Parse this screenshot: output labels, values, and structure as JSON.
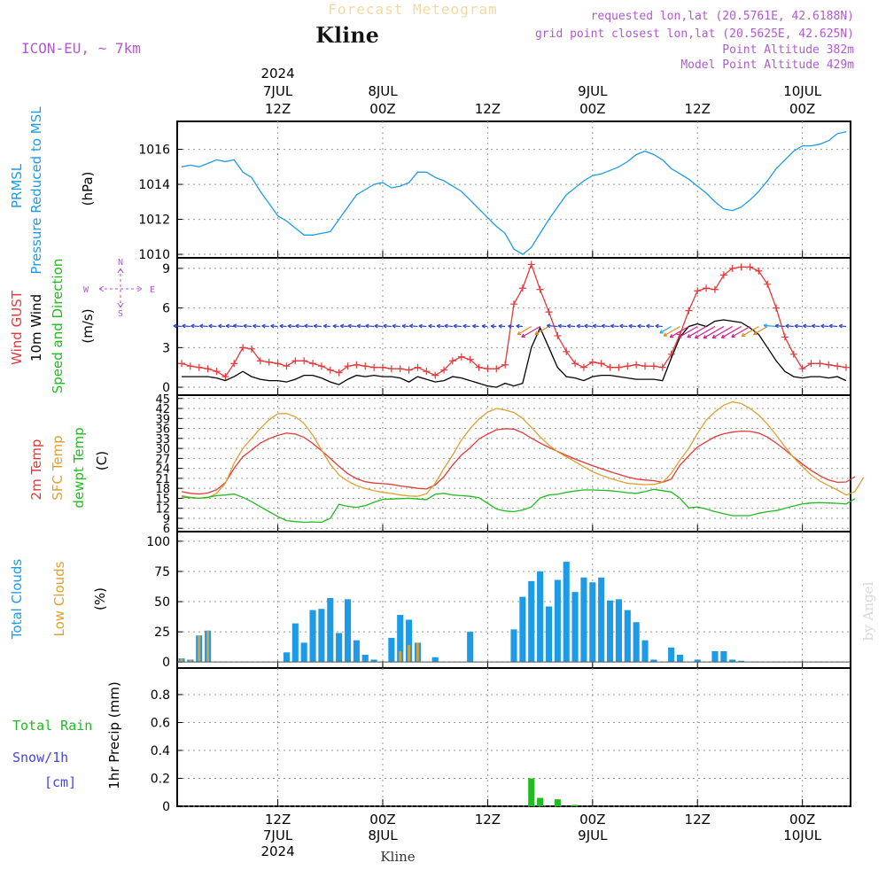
{
  "header": {
    "title_top": "Forecast Meteogram",
    "location": "Kline",
    "model": "ICON-EU, ~ 7km",
    "requested": "requested lon,lat (20.5761E, 42.6188N)",
    "grid_point": "grid point closest lon,lat (20.5625E, 42.625N)",
    "point_altitude": "Point Altitude 382m",
    "model_altitude": "Model Point Altitude 429m",
    "footer_location": "Kline",
    "watermark": "by Angel"
  },
  "colors": {
    "pressure": "#1e9be6",
    "gust": "#e23a3a",
    "wind10m": "#000000",
    "temp2m": "#e23a3a",
    "sfc_temp": "#e0a030",
    "dewpoint": "#22bb22",
    "total_clouds": "#1e9be6",
    "low_clouds": "#e0a030",
    "rain": "#22bb22",
    "snow": "#4444ee",
    "purple": "#b05ad0"
  },
  "axis_top": {
    "ticks": [
      {
        "line1": "2024",
        "line2": "7JUL",
        "line3": "12Z"
      },
      {
        "line1": "",
        "line2": "8JUL",
        "line3": "00Z"
      },
      {
        "line1": "",
        "line2": "",
        "line3": "12Z"
      },
      {
        "line1": "",
        "line2": "9JUL",
        "line3": "00Z"
      },
      {
        "line1": "",
        "line2": "",
        "line3": "12Z"
      },
      {
        "line1": "",
        "line2": "10JUL",
        "line3": "00Z"
      }
    ]
  },
  "axis_bottom": {
    "ticks": [
      {
        "line1": "12Z",
        "line2": "7JUL",
        "line3": "2024"
      },
      {
        "line1": "00Z",
        "line2": "8JUL",
        "line3": ""
      },
      {
        "line1": "12Z",
        "line2": "",
        "line3": ""
      },
      {
        "line1": "00Z",
        "line2": "9JUL",
        "line3": ""
      },
      {
        "line1": "12Z",
        "line2": "",
        "line3": ""
      },
      {
        "line1": "00Z",
        "line2": "10JUL",
        "line3": ""
      }
    ]
  },
  "chart_data": [
    {
      "type": "line",
      "panel": "pressure",
      "ylabel_lines": [
        "PRMSL",
        "Pressure Reduced to MSL"
      ],
      "unit": "(hPa)",
      "y_ticks": [
        "1010",
        "1012",
        "1014",
        "1016"
      ],
      "ylim": [
        1009.8,
        1017.6
      ],
      "grid": true,
      "x_hours_from_start": [
        0,
        1,
        2,
        3,
        4,
        5,
        6,
        7,
        8,
        9,
        10,
        11,
        12,
        13,
        14,
        15,
        16,
        17,
        18,
        19,
        20,
        21,
        22,
        23,
        24,
        25,
        26,
        27,
        28,
        29,
        30,
        31,
        32,
        33,
        34,
        35,
        36,
        37,
        38,
        39,
        40,
        41,
        42,
        43,
        44,
        45,
        46,
        47,
        48,
        49,
        50,
        51,
        52,
        53,
        54,
        55,
        56,
        57,
        58,
        59,
        60,
        61,
        62,
        63,
        64,
        65,
        66,
        67,
        68,
        69,
        70,
        71,
        72,
        73,
        74,
        75,
        76
      ],
      "series": [
        {
          "values": [
            1015.0,
            1015.1,
            1015.0,
            1015.2,
            1015.4,
            1015.3,
            1015.4,
            1014.7,
            1014.4,
            1013.6,
            1012.9,
            1012.2,
            1011.9,
            1011.5,
            1011.1,
            1011.1,
            1011.2,
            1011.3,
            1012.0,
            1012.7,
            1013.4,
            1013.7,
            1014.0,
            1014.1,
            1013.8,
            1013.9,
            1014.1,
            1014.7,
            1014.7,
            1014.4,
            1014.2,
            1013.9,
            1013.6,
            1013.1,
            1012.6,
            1012.1,
            1011.6,
            1011.2,
            1010.3,
            1010.0,
            1010.4,
            1011.2,
            1012.0,
            1012.7,
            1013.4,
            1013.8,
            1014.2,
            1014.5,
            1014.6,
            1014.8,
            1015.0,
            1015.3,
            1015.7,
            1015.9,
            1015.7,
            1015.4,
            1014.9,
            1014.6,
            1014.3,
            1013.9,
            1013.5,
            1013.0,
            1012.6,
            1012.5,
            1012.7,
            1013.1,
            1013.6,
            1014.2,
            1014.9,
            1015.4,
            1015.9,
            1016.2,
            1016.2,
            1016.3,
            1016.5,
            1016.9,
            1017.0
          ]
        }
      ]
    },
    {
      "type": "line",
      "panel": "wind",
      "ylabel_lines": [
        "Wind GUST",
        "10m Wind",
        "Speed and Direction"
      ],
      "unit": "(m/s)",
      "compass": {
        "n": "N",
        "s": "S",
        "w": "W",
        "e": "E"
      },
      "y_ticks": [
        "0",
        "3",
        "6",
        "9"
      ],
      "ylim": [
        -0.6,
        9.8
      ],
      "grid": true,
      "series": [
        {
          "name": "Wind GUST",
          "values": [
            1.8,
            1.6,
            1.5,
            1.4,
            1.2,
            0.8,
            1.8,
            3.0,
            2.9,
            2.0,
            1.9,
            1.8,
            1.6,
            2.0,
            2.0,
            1.8,
            1.6,
            1.3,
            1.1,
            1.6,
            1.7,
            1.6,
            1.5,
            1.5,
            1.4,
            1.4,
            1.3,
            1.5,
            1.2,
            0.9,
            1.3,
            2.0,
            2.3,
            2.1,
            1.5,
            1.4,
            1.4,
            1.7,
            6.3,
            7.5,
            9.3,
            7.4,
            5.7,
            3.9,
            2.7,
            1.8,
            1.5,
            1.9,
            1.8,
            1.5,
            1.5,
            1.6,
            1.7,
            1.6,
            1.6,
            1.5,
            2.5,
            4.0,
            5.8,
            7.3,
            7.5,
            7.4,
            8.5,
            9.0,
            9.1,
            9.1,
            8.8,
            7.8,
            6.0,
            3.8,
            2.5,
            1.4,
            1.8,
            1.8,
            1.7,
            1.6,
            1.5
          ]
        },
        {
          "name": "10m Wind",
          "values": [
            0.8,
            0.8,
            0.8,
            0.8,
            0.7,
            0.5,
            0.8,
            1.2,
            0.8,
            0.6,
            0.5,
            0.5,
            0.4,
            0.6,
            0.9,
            0.9,
            0.7,
            0.4,
            0.2,
            0.6,
            0.9,
            0.8,
            0.9,
            0.8,
            0.8,
            0.7,
            0.4,
            0.8,
            0.6,
            0.4,
            0.5,
            0.8,
            0.7,
            0.5,
            0.3,
            0.1,
            0.0,
            0.3,
            0.1,
            0.3,
            3.0,
            4.5,
            3.0,
            1.5,
            0.8,
            0.7,
            0.5,
            0.8,
            0.9,
            0.9,
            0.8,
            0.7,
            0.6,
            0.6,
            0.6,
            0.5,
            2.2,
            3.8,
            4.6,
            4.8,
            4.6,
            5.0,
            5.1,
            5.0,
            4.9,
            4.5,
            4.0,
            3.0,
            2.0,
            1.2,
            0.8,
            0.7,
            0.8,
            0.8,
            0.7,
            0.8,
            0.5
          ]
        }
      ]
    },
    {
      "type": "line",
      "panel": "temperature",
      "ylabel_lines": [
        "2m Temp",
        "SFC Temp",
        "dewpt Temp"
      ],
      "unit": "(C)",
      "y_ticks": [
        "6",
        "9",
        "12",
        "15",
        "18",
        "21",
        "24",
        "27",
        "30",
        "33",
        "36",
        "39",
        "42",
        "45"
      ],
      "ylim": [
        5,
        46
      ],
      "grid": true,
      "series": [
        {
          "name": "2m Temp",
          "values": [
            17.0,
            16.5,
            16.3,
            16.6,
            17.6,
            19.7,
            24.0,
            27.5,
            29.5,
            31.6,
            32.9,
            33.9,
            34.6,
            34.3,
            33.3,
            31.5,
            29.3,
            27.0,
            24.6,
            22.4,
            20.9,
            20.0,
            19.6,
            19.4,
            19.2,
            18.7,
            18.4,
            18.0,
            17.8,
            19.0,
            21.5,
            25.0,
            28.0,
            30.2,
            32.8,
            34.3,
            35.6,
            35.9,
            35.8,
            34.7,
            33.1,
            31.6,
            30.3,
            29.1,
            27.9,
            26.8,
            25.8,
            24.8,
            23.9,
            23.0,
            22.2,
            21.4,
            20.8,
            20.5,
            20.3,
            19.8,
            20.8,
            25.0,
            27.8,
            30.4,
            32.0,
            33.5,
            34.4,
            34.9,
            35.2,
            35.1,
            34.6,
            33.4,
            31.6,
            29.6,
            27.4,
            25.3,
            23.4,
            21.8,
            20.5,
            19.8,
            19.9,
            21.5
          ]
        },
        {
          "name": "SFC Temp",
          "values": [
            15.8,
            15.3,
            15.0,
            15.2,
            16.5,
            19.5,
            25.5,
            30.0,
            33.0,
            36.0,
            38.6,
            40.4,
            40.5,
            39.5,
            37.5,
            34.0,
            29.5,
            25.2,
            22.0,
            20.2,
            18.8,
            18.0,
            17.3,
            16.8,
            16.5,
            16.0,
            15.7,
            15.6,
            16.4,
            19.5,
            24.0,
            28.0,
            32.5,
            36.0,
            38.8,
            40.9,
            42.0,
            41.5,
            40.8,
            39.0,
            36.3,
            33.5,
            31.0,
            29.0,
            27.5,
            26.0,
            24.5,
            23.0,
            21.9,
            21.0,
            20.2,
            19.5,
            19.3,
            19.1,
            19.2,
            19.8,
            22.5,
            26.5,
            30.0,
            34.5,
            38.5,
            41.0,
            43.0,
            44.0,
            43.5,
            42.0,
            40.0,
            37.3,
            34.0,
            30.5,
            27.2,
            24.5,
            22.0,
            20.2,
            18.8,
            17.5,
            16.0,
            17.0,
            21.3
          ]
        },
        {
          "name": "dewpt Temp",
          "values": [
            15.4,
            15.2,
            15.0,
            15.3,
            15.8,
            16.0,
            16.3,
            15.3,
            14.0,
            12.5,
            11.0,
            9.5,
            8.3,
            8.0,
            7.8,
            7.9,
            7.8,
            9.0,
            13.2,
            12.6,
            12.3,
            12.8,
            13.8,
            14.7,
            14.8,
            14.9,
            15.0,
            14.8,
            14.6,
            16.2,
            16.5,
            16.0,
            15.8,
            15.6,
            15.2,
            13.5,
            11.8,
            11.2,
            11.0,
            11.5,
            12.4,
            15.1,
            16.0,
            16.2,
            16.8,
            17.2,
            17.5,
            17.5,
            17.4,
            17.3,
            17.0,
            16.7,
            16.5,
            17.0,
            17.7,
            17.3,
            16.9,
            15.0,
            12.1,
            12.4,
            11.8,
            11.0,
            10.4,
            9.8,
            9.8,
            9.8,
            10.5,
            11.0,
            11.3,
            12.0,
            12.7,
            13.3,
            13.6,
            13.7,
            13.6,
            13.5,
            13.3,
            14.9
          ]
        }
      ]
    },
    {
      "type": "bar",
      "panel": "clouds",
      "ylabel_lines": [
        "Total Clouds",
        "Low Clouds"
      ],
      "unit": "(%)",
      "y_ticks": [
        "0",
        "25",
        "50",
        "75",
        "100"
      ],
      "ylim": [
        -5,
        108
      ],
      "grid": true,
      "series": [
        {
          "name": "Total Clouds",
          "values": [
            3,
            2,
            22,
            26,
            0,
            0,
            0,
            0,
            0,
            0,
            0,
            0,
            8,
            32,
            16,
            43,
            44,
            53,
            24,
            52,
            18,
            6,
            2,
            0,
            20,
            39,
            35,
            16,
            0,
            4,
            0,
            0,
            0,
            25,
            0,
            0,
            0,
            0,
            27,
            54,
            67,
            75,
            46,
            68,
            83,
            58,
            70,
            66,
            70,
            51,
            52,
            43,
            33,
            18,
            2,
            0,
            12,
            6,
            0,
            2,
            0,
            9,
            9,
            2,
            1,
            0,
            0,
            0,
            0,
            0,
            0,
            0,
            0,
            0,
            0,
            0,
            0
          ]
        },
        {
          "name": "Low Clouds",
          "values": [
            3,
            2,
            22,
            26,
            0,
            0,
            0,
            0,
            0,
            0,
            0,
            0,
            0,
            0,
            0,
            0,
            0,
            0,
            0,
            0,
            0,
            0,
            0,
            0,
            0,
            9,
            14,
            16,
            0,
            0,
            0,
            0,
            0,
            0,
            0,
            0,
            0,
            0,
            0,
            0,
            0,
            0,
            0,
            0,
            0,
            0,
            0,
            0,
            0,
            0,
            0,
            0,
            0,
            0,
            0,
            0,
            0,
            0,
            0,
            0,
            0,
            0,
            0,
            0,
            0,
            0,
            0,
            0,
            0,
            0,
            0,
            0,
            0,
            0,
            0,
            0,
            0
          ]
        }
      ]
    },
    {
      "type": "bar",
      "panel": "precipitation",
      "ylabel": "1hr Precip (mm)",
      "legend_lines": [
        "Total Rain",
        "Snow/1h",
        "[cm]"
      ],
      "y_ticks": [
        "0",
        "0.2",
        "0.4",
        "0.6",
        "0.8"
      ],
      "ylim": [
        0,
        0.99
      ],
      "grid": true,
      "series": [
        {
          "name": "Total Rain",
          "values": [
            0,
            0,
            0,
            0,
            0,
            0,
            0,
            0,
            0,
            0,
            0,
            0,
            0,
            0,
            0,
            0,
            0,
            0,
            0,
            0,
            0,
            0,
            0,
            0,
            0,
            0,
            0,
            0,
            0,
            0,
            0,
            0,
            0,
            0,
            0,
            0,
            0,
            0,
            0,
            0,
            0.2,
            0.06,
            0,
            0.05,
            0,
            0.01,
            0,
            0,
            0,
            0,
            0,
            0,
            0,
            0,
            0,
            0,
            0,
            0,
            0,
            0,
            0,
            0,
            0,
            0,
            0,
            0,
            0,
            0,
            0,
            0,
            0,
            0,
            0,
            0,
            0,
            0,
            0
          ]
        }
      ]
    }
  ]
}
